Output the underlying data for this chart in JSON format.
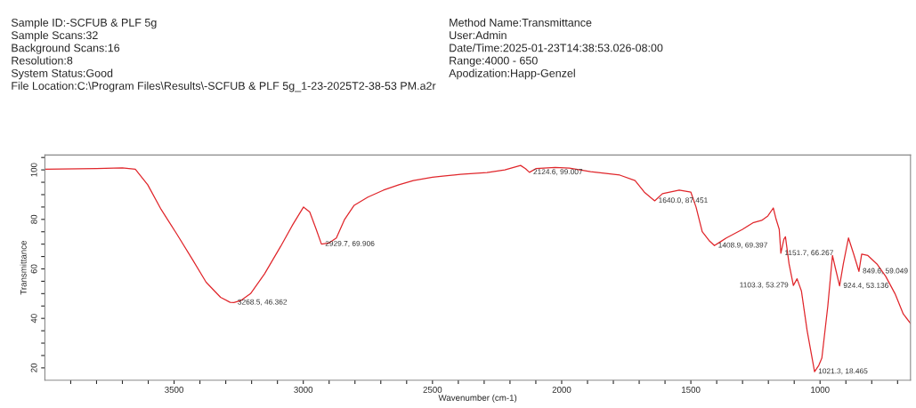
{
  "chart_data": {
    "type": "line",
    "xlabel": "Wavenumber (cm-1)",
    "ylabel": "Transmittance",
    "x": [
      4000,
      3800,
      3700,
      3650,
      3602,
      3550,
      3489,
      3430,
      3376,
      3320,
      3283,
      3268.5,
      3240,
      3204,
      3150,
      3088,
      3040,
      2999,
      2975,
      2950,
      2929.7,
      2900,
      2872,
      2840,
      2803,
      2750,
      2690,
      2630,
      2574,
      2500,
      2460,
      2392,
      2289,
      2220,
      2159,
      2140,
      2124.6,
      2100,
      2025,
      1970,
      1888,
      1775,
      1716,
      1680,
      1640,
      1610,
      1545,
      1500,
      1480,
      1456,
      1430,
      1408.9,
      1385,
      1363,
      1300,
      1260,
      1226,
      1202,
      1181,
      1170,
      1158,
      1151.7,
      1140,
      1134,
      1120,
      1103.3,
      1089,
      1072,
      1050,
      1021.3,
      1005,
      993,
      970,
      952,
      940,
      924.4,
      910,
      890,
      870,
      849.6,
      839,
      815,
      780,
      746,
      710,
      678,
      650
    ],
    "xlim": [
      4000,
      650
    ],
    "xticks": [
      {
        "value": 3900,
        "label": null
      },
      {
        "value": 3800,
        "label": null
      },
      {
        "value": 3700,
        "label": null
      },
      {
        "value": 3600,
        "label": null
      },
      3500,
      {
        "value": 3400,
        "label": null
      },
      {
        "value": 3300,
        "label": null
      },
      {
        "value": 3200,
        "label": null
      },
      {
        "value": 3100,
        "label": null
      },
      3000,
      {
        "value": 2900,
        "label": null
      },
      {
        "value": 2800,
        "label": null
      },
      {
        "value": 2700,
        "label": null
      },
      {
        "value": 2600,
        "label": null
      },
      2500,
      {
        "value": 2400,
        "label": null
      },
      {
        "value": 2300,
        "label": null
      },
      {
        "value": 2200,
        "label": null
      },
      {
        "value": 2100,
        "label": null
      },
      2000,
      {
        "value": 1900,
        "label": null
      },
      {
        "value": 1800,
        "label": null
      },
      {
        "value": 1700,
        "label": null
      },
      {
        "value": 1600,
        "label": null
      },
      1500,
      {
        "value": 1400,
        "label": null
      },
      {
        "value": 1300,
        "label": null
      },
      {
        "value": 1200,
        "label": null
      },
      {
        "value": 1100,
        "label": null
      },
      1000,
      {
        "value": 900,
        "label": null
      },
      {
        "value": 800,
        "label": null
      },
      {
        "value": 700,
        "label": null
      }
    ],
    "ylim": [
      15,
      106
    ],
    "yticks": [
      20,
      {
        "value": 25,
        "label": null
      },
      {
        "value": 30,
        "label": null
      },
      {
        "value": 35,
        "label": null
      },
      40,
      {
        "value": 45,
        "label": null
      },
      {
        "value": 50,
        "label": null
      },
      {
        "value": 55,
        "label": null
      },
      60,
      {
        "value": 65,
        "label": null
      },
      {
        "value": 70,
        "label": null
      },
      {
        "value": 75,
        "label": null
      },
      80,
      {
        "value": 85,
        "label": null
      },
      {
        "value": 90,
        "label": null
      },
      {
        "value": 95,
        "label": null
      },
      100,
      {
        "value": 105,
        "label": null
      }
    ],
    "grid": false,
    "legend": false,
    "marker": "none",
    "line_style": "solid",
    "series": [
      {
        "color": "#e0262b",
        "values": [
          100.3,
          100.5,
          100.8,
          100.3,
          94,
          84,
          74,
          64,
          54.6,
          48.5,
          46.5,
          46.4,
          47.3,
          50,
          58,
          69,
          78,
          85,
          83,
          76,
          70,
          70.5,
          72.5,
          80,
          85.7,
          89,
          91.8,
          94,
          95.7,
          97,
          97.5,
          98.2,
          98.9,
          100,
          101.8,
          100.5,
          99,
          100.5,
          101,
          100.7,
          99.3,
          97.9,
          95.7,
          91,
          87.5,
          90.4,
          91.8,
          91,
          85,
          75,
          71.5,
          69.4,
          71,
          72.5,
          76,
          78.6,
          79.6,
          81.4,
          84.6,
          80,
          76,
          66.3,
          72,
          73,
          62,
          53.3,
          56,
          51,
          35,
          18.5,
          21,
          24,
          45,
          65.4,
          60,
          53.1,
          62,
          72.5,
          66,
          59,
          66,
          65.4,
          62,
          57,
          50,
          41.8,
          38
        ]
      }
    ],
    "annotations": [
      "Sample ID:-SCFUB & PLF 5g",
      "Sample Scans:32",
      "Background Scans:16",
      "Resolution:8",
      "System Status:Good",
      "Method Name:Transmittance",
      "User:Admin",
      "Date/Time:2025-01-23T14:38:53.026-08:00",
      "Range:4000 - 650",
      "Apodization:Happ-Genzel",
      "File Location:C:\\Program Files\\Results\\-SCFUB & PLF 5g_1-23-2025T2-38-53 PM.a2r",
      {
        "text": "3268.5, 46.362",
        "x": 3268.5,
        "y": 46.4
      },
      {
        "text": "2929.7, 69.906",
        "x": 2929.7,
        "y": 70
      },
      {
        "text": "2124.6, 99.007",
        "x": 2124.6,
        "y": 99
      },
      {
        "text": "1640.0, 87.451",
        "x": 1640,
        "y": 87.5
      },
      {
        "text": "1408.9, 69.397",
        "x": 1408.9,
        "y": 69.4
      },
      {
        "text": "1151.7, 66.267",
        "x": 1151.7,
        "y": 66.3
      },
      {
        "text": "1103.3, 53.279",
        "x": 1103.3,
        "y": 53.3
      },
      {
        "text": "924.4, 53.136",
        "x": 924.4,
        "y": 53.1
      },
      {
        "text": "849.6, 59.049",
        "x": 849.6,
        "y": 59
      },
      {
        "text": "1021.3, 18.465",
        "x": 1021.3,
        "y": 18.5
      }
    ]
  }
}
